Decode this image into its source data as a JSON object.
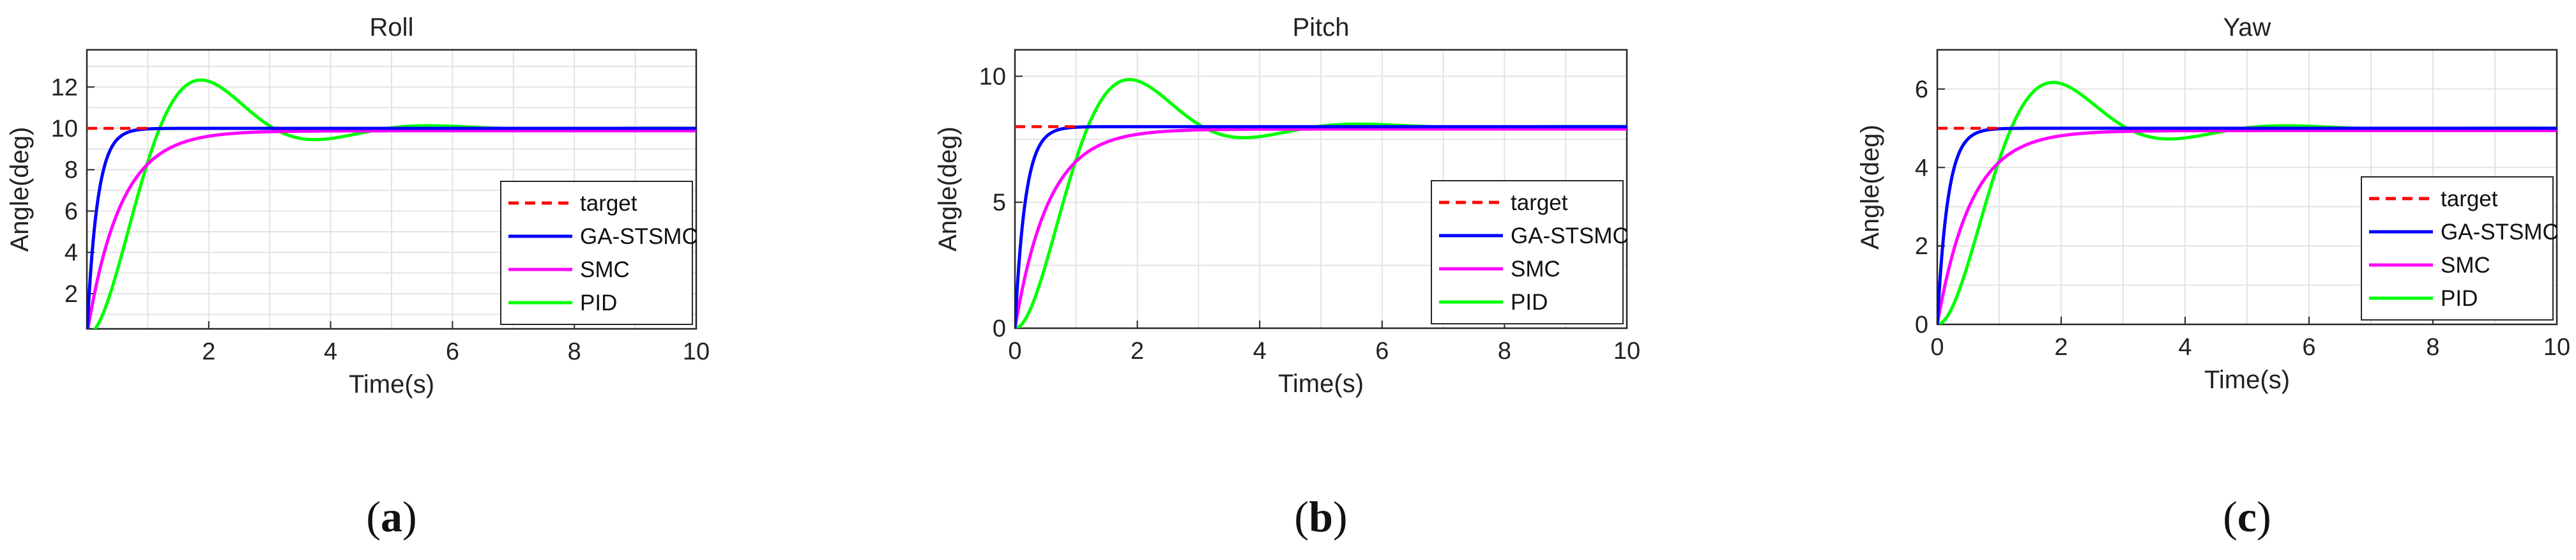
{
  "chart_data": [
    {
      "type": "line",
      "panel": "a",
      "title": "Roll",
      "xlabel": "Time(s)",
      "ylabel": "Angle(deg)",
      "xlim": [
        0,
        10
      ],
      "ylim": [
        0.3,
        13.8
      ],
      "xticks": [
        2,
        4,
        6,
        8,
        10
      ],
      "xtick_labels": [
        "2",
        "4",
        "6",
        "8",
        "10"
      ],
      "yticks": [
        2,
        4,
        6,
        8,
        10,
        12
      ],
      "ytick_labels": [
        "2",
        "4",
        "6",
        "8",
        "10",
        "12"
      ],
      "target": 10,
      "grid": true,
      "legend_position": "lower-right",
      "series": [
        {
          "name": "target",
          "color": "#ff0000",
          "style": "dashed",
          "kind": "target"
        },
        {
          "name": "GA-STSMC",
          "color": "#0000ff",
          "style": "solid",
          "kind": "fast"
        },
        {
          "name": "SMC",
          "color": "#ff00ff",
          "style": "solid",
          "kind": "smc"
        },
        {
          "name": "PID",
          "color": "#00ff00",
          "style": "solid",
          "kind": "pid"
        }
      ],
      "caption": "(a)",
      "caption_letter": "a"
    },
    {
      "type": "line",
      "panel": "b",
      "title": "Pitch",
      "xlabel": "Time(s)",
      "ylabel": "Angle(deg)",
      "xlim": [
        0,
        10
      ],
      "ylim": [
        0,
        11.05
      ],
      "xticks": [
        0,
        2,
        4,
        6,
        8,
        10
      ],
      "xtick_labels": [
        "0",
        "2",
        "4",
        "6",
        "8",
        "10"
      ],
      "yticks": [
        0,
        5,
        10
      ],
      "ytick_labels": [
        "0",
        "5",
        "10"
      ],
      "target": 8,
      "grid": true,
      "legend_position": "lower-right",
      "series": [
        {
          "name": "target",
          "color": "#ff0000",
          "style": "dashed",
          "kind": "target"
        },
        {
          "name": "GA-STSMC",
          "color": "#0000ff",
          "style": "solid",
          "kind": "fast"
        },
        {
          "name": "SMC",
          "color": "#ff00ff",
          "style": "solid",
          "kind": "smc"
        },
        {
          "name": "PID",
          "color": "#00ff00",
          "style": "solid",
          "kind": "pid"
        }
      ],
      "caption": "(b)",
      "caption_letter": "b"
    },
    {
      "type": "line",
      "panel": "c",
      "title": "Yaw",
      "xlabel": "Time(s)",
      "ylabel": "Angle(deg)",
      "xlim": [
        0,
        10
      ],
      "ylim": [
        0,
        7
      ],
      "xticks": [
        0,
        2,
        4,
        6,
        8,
        10
      ],
      "xtick_labels": [
        "0",
        "2",
        "4",
        "6",
        "8",
        "10"
      ],
      "yticks": [
        0,
        2,
        4,
        6
      ],
      "ytick_labels": [
        "0",
        "2",
        "4",
        "6"
      ],
      "target": 5,
      "grid": true,
      "legend_position": "lower-right",
      "series": [
        {
          "name": "target",
          "color": "#ff0000",
          "style": "dashed",
          "kind": "target"
        },
        {
          "name": "GA-STSMC",
          "color": "#0000ff",
          "style": "solid",
          "kind": "fast"
        },
        {
          "name": "SMC",
          "color": "#ff00ff",
          "style": "solid",
          "kind": "smc"
        },
        {
          "name": "PID",
          "color": "#00ff00",
          "style": "solid",
          "kind": "pid"
        }
      ],
      "caption": "(c)",
      "caption_letter": "c"
    }
  ]
}
